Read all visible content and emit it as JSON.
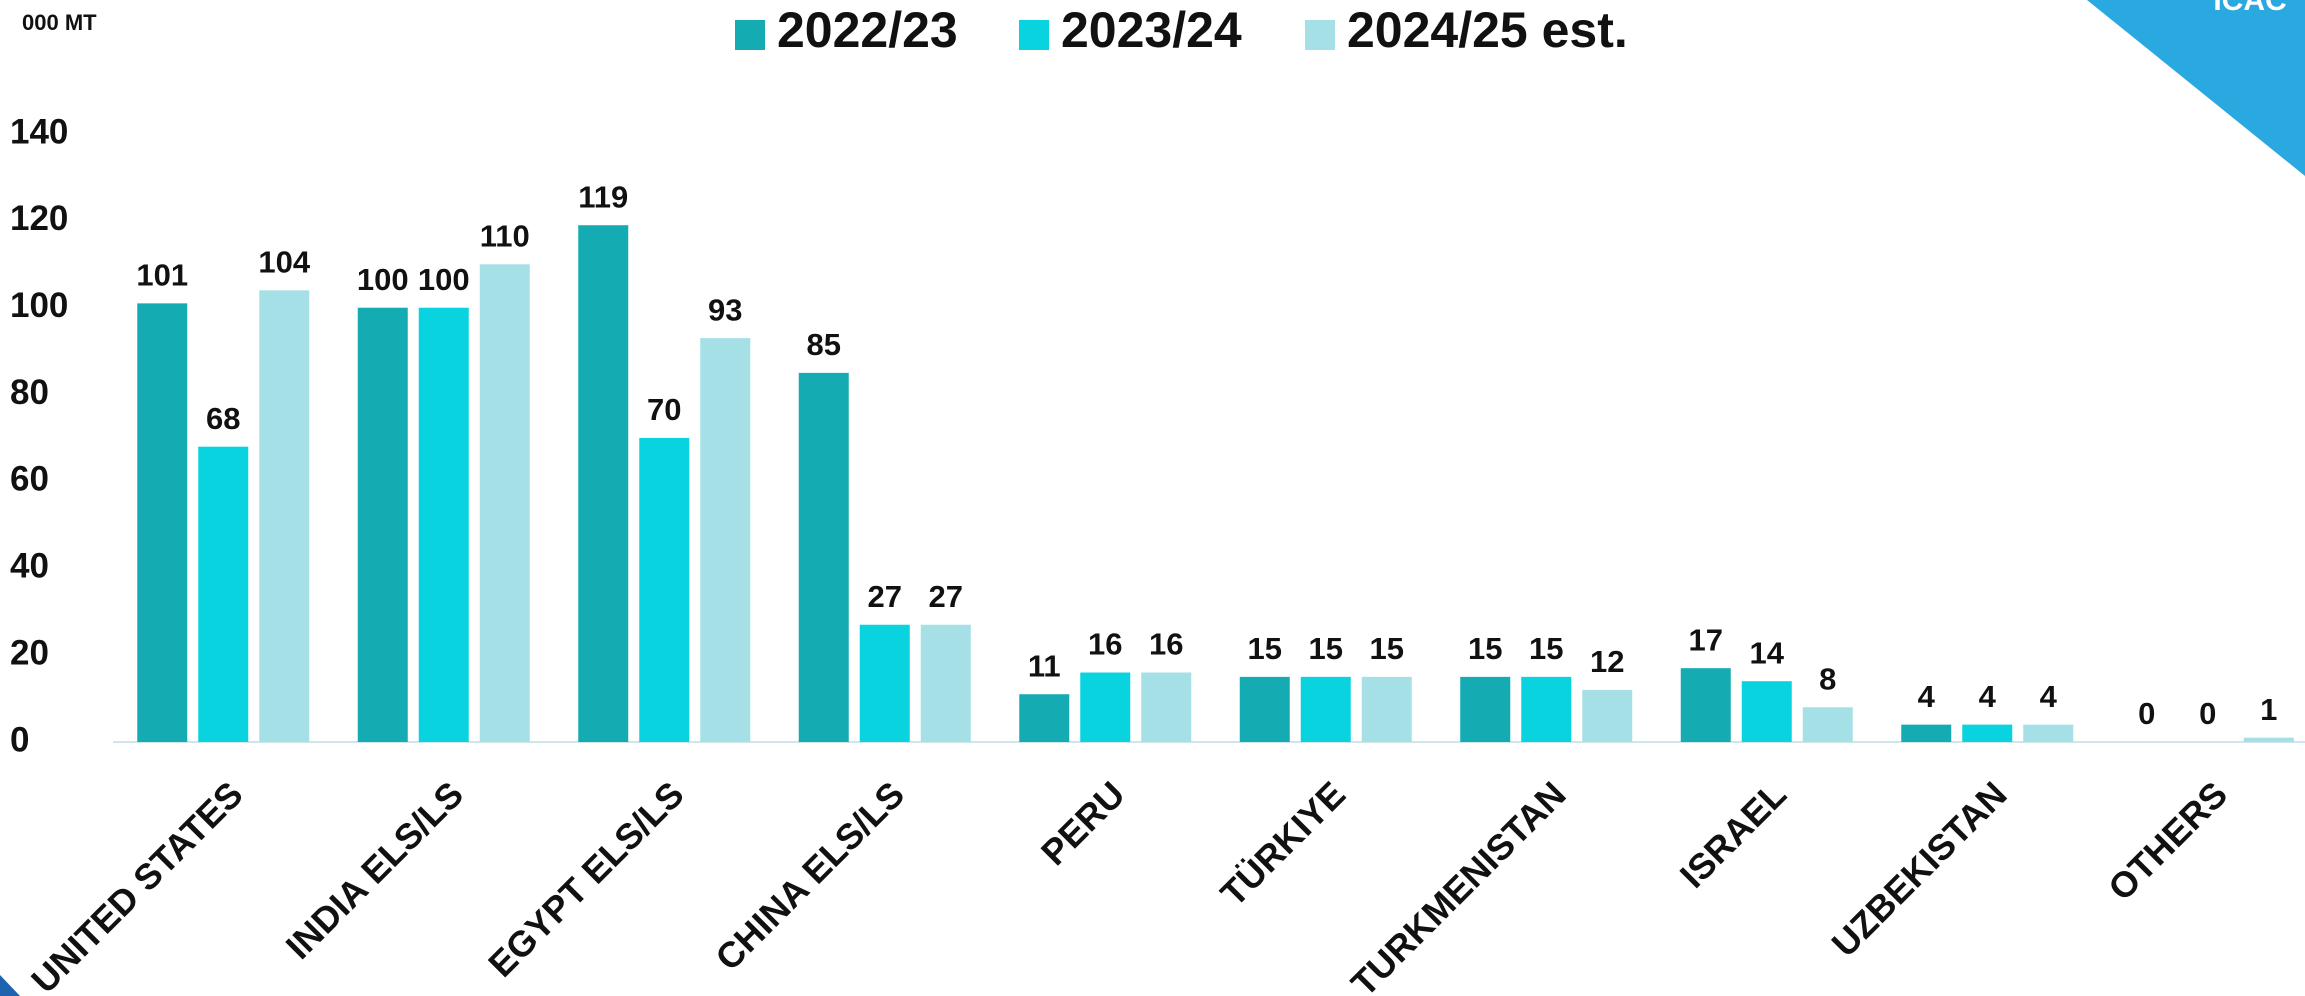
{
  "logo": "ICAC",
  "chart_data": {
    "type": "bar",
    "unit_label": "000 MT",
    "categories": [
      "UNITED STATES",
      "INDIA ELS/LS",
      "EGYPT ELS/LS",
      "CHINA ELS/LS",
      "PERU",
      "TÜRKIYE",
      "TURKMENISTAN",
      "ISRAEL",
      "UZBEKISTAN",
      "OTHERS"
    ],
    "series": [
      {
        "name": "2022/23",
        "color": "#15abb3",
        "values": [
          101,
          100,
          119,
          85,
          11,
          15,
          15,
          17,
          4,
          0
        ]
      },
      {
        "name": "2023/24",
        "color": "#08d3df",
        "values": [
          68,
          100,
          70,
          27,
          16,
          15,
          15,
          14,
          4,
          0
        ]
      },
      {
        "name": "2024/25 est.",
        "color": "#a4e0e6",
        "values": [
          104,
          110,
          93,
          27,
          16,
          15,
          12,
          8,
          4,
          1
        ]
      }
    ],
    "ylim": [
      0,
      140
    ],
    "yticks": [
      0,
      20,
      40,
      60,
      80,
      100,
      120,
      140
    ],
    "grid": false,
    "legend": "top"
  }
}
